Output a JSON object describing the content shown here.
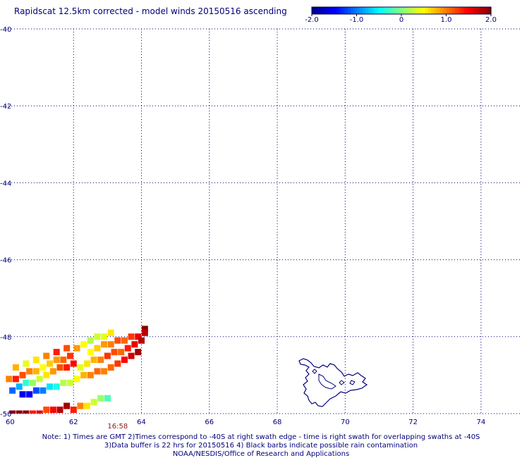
{
  "title": "Rapidscat 12.5km corrected - model winds 20150516 ascending",
  "colorbar": {
    "labels": [
      "-2.0",
      "-1.0",
      "0",
      "1.0",
      "2.0"
    ],
    "values": [
      -2.0,
      -1.0,
      0,
      1.0,
      2.0
    ],
    "colors": [
      "#00008b",
      "#0000ff",
      "#0080ff",
      "#00ffff",
      "#80ff80",
      "#ffff00",
      "#ff8000",
      "#ff0000",
      "#8b0000"
    ]
  },
  "map": {
    "lon_range": [
      60,
      75
    ],
    "lat_range": [
      -50,
      -40
    ],
    "x_ticks": [
      "60",
      "62",
      "64",
      "66",
      "68",
      "70",
      "72",
      "74"
    ],
    "y_ticks": [
      "-40",
      "-42",
      "-44",
      "-46",
      "-48",
      "-50"
    ],
    "grid_lines": "dotted",
    "coast_color": "#000080",
    "swath_time": "16:58",
    "swath_cells": [
      {
        "lon": 64.1,
        "lat": -47.8,
        "v": 2.0
      },
      {
        "lon": 64.1,
        "lat": -47.9,
        "v": 1.8
      },
      {
        "lon": 63.9,
        "lat": -48.0,
        "v": 1.6
      },
      {
        "lon": 63.7,
        "lat": -48.0,
        "v": 1.3
      },
      {
        "lon": 63.5,
        "lat": -48.1,
        "v": 1.1
      },
      {
        "lon": 63.3,
        "lat": -48.1,
        "v": 1.2
      },
      {
        "lon": 63.1,
        "lat": -48.2,
        "v": 1.0
      },
      {
        "lon": 62.9,
        "lat": -48.2,
        "v": 0.9
      },
      {
        "lon": 62.7,
        "lat": -48.3,
        "v": 0.7
      },
      {
        "lon": 62.5,
        "lat": -48.4,
        "v": 0.5
      },
      {
        "lon": 64.0,
        "lat": -48.1,
        "v": 1.8
      },
      {
        "lon": 63.8,
        "lat": -48.2,
        "v": 1.6
      },
      {
        "lon": 63.6,
        "lat": -48.3,
        "v": 1.4
      },
      {
        "lon": 63.4,
        "lat": -48.4,
        "v": 1.1
      },
      {
        "lon": 63.2,
        "lat": -48.4,
        "v": 1.2
      },
      {
        "lon": 63.0,
        "lat": -48.5,
        "v": 1.3
      },
      {
        "lon": 62.8,
        "lat": -48.6,
        "v": 1.0
      },
      {
        "lon": 62.6,
        "lat": -48.6,
        "v": 0.8
      },
      {
        "lon": 62.4,
        "lat": -48.7,
        "v": 0.6
      },
      {
        "lon": 62.2,
        "lat": -48.8,
        "v": 0.4
      },
      {
        "lon": 63.9,
        "lat": -48.4,
        "v": 1.9
      },
      {
        "lon": 63.7,
        "lat": -48.5,
        "v": 1.7
      },
      {
        "lon": 63.5,
        "lat": -48.6,
        "v": 1.5
      },
      {
        "lon": 63.3,
        "lat": -48.7,
        "v": 1.3
      },
      {
        "lon": 63.1,
        "lat": -48.8,
        "v": 1.1
      },
      {
        "lon": 62.9,
        "lat": -48.9,
        "v": 1.0
      },
      {
        "lon": 62.7,
        "lat": -48.9,
        "v": 1.1
      },
      {
        "lon": 62.5,
        "lat": -49.0,
        "v": 1.0
      },
      {
        "lon": 62.3,
        "lat": -49.0,
        "v": 0.8
      },
      {
        "lon": 62.1,
        "lat": -49.1,
        "v": 0.5
      },
      {
        "lon": 61.9,
        "lat": -49.2,
        "v": 0.3
      },
      {
        "lon": 61.7,
        "lat": -49.2,
        "v": 0.2
      },
      {
        "lon": 61.5,
        "lat": -49.3,
        "v": -0.4
      },
      {
        "lon": 61.3,
        "lat": -49.3,
        "v": -0.6
      },
      {
        "lon": 61.1,
        "lat": -49.4,
        "v": -1.0
      },
      {
        "lon": 60.9,
        "lat": -49.4,
        "v": -1.2
      },
      {
        "lon": 60.7,
        "lat": -49.5,
        "v": -1.5
      },
      {
        "lon": 60.5,
        "lat": -49.5,
        "v": -1.6
      },
      {
        "lon": 62.0,
        "lat": -48.7,
        "v": 1.5
      },
      {
        "lon": 61.8,
        "lat": -48.8,
        "v": 1.4
      },
      {
        "lon": 61.6,
        "lat": -48.8,
        "v": 1.2
      },
      {
        "lon": 61.4,
        "lat": -48.9,
        "v": 0.9
      },
      {
        "lon": 61.2,
        "lat": -49.0,
        "v": 0.6
      },
      {
        "lon": 61.0,
        "lat": -49.1,
        "v": 0.3
      },
      {
        "lon": 60.8,
        "lat": -49.2,
        "v": 0.1
      },
      {
        "lon": 60.6,
        "lat": -49.2,
        "v": -0.3
      },
      {
        "lon": 60.4,
        "lat": -49.3,
        "v": -0.8
      },
      {
        "lon": 60.2,
        "lat": -49.4,
        "v": -1.1
      },
      {
        "lon": 61.9,
        "lat": -48.5,
        "v": 1.3
      },
      {
        "lon": 61.7,
        "lat": -48.6,
        "v": 1.1
      },
      {
        "lon": 61.5,
        "lat": -48.6,
        "v": 0.9
      },
      {
        "lon": 61.3,
        "lat": -48.7,
        "v": 0.7
      },
      {
        "lon": 61.1,
        "lat": -48.8,
        "v": 0.5
      },
      {
        "lon": 60.9,
        "lat": -48.9,
        "v": 0.8
      },
      {
        "lon": 60.7,
        "lat": -48.9,
        "v": 1.0
      },
      {
        "lon": 60.5,
        "lat": -49.0,
        "v": 1.2
      },
      {
        "lon": 60.3,
        "lat": -49.1,
        "v": 1.4
      },
      {
        "lon": 60.1,
        "lat": -49.1,
        "v": 1.0
      },
      {
        "lon": 63.1,
        "lat": -47.9,
        "v": 0.6
      },
      {
        "lon": 62.9,
        "lat": -48.0,
        "v": 0.4
      },
      {
        "lon": 62.7,
        "lat": -48.0,
        "v": 0.3
      },
      {
        "lon": 62.5,
        "lat": -48.1,
        "v": 0.2
      },
      {
        "lon": 62.3,
        "lat": -48.2,
        "v": 0.5
      },
      {
        "lon": 62.1,
        "lat": -48.3,
        "v": 0.9
      },
      {
        "lon": 61.8,
        "lat": -48.3,
        "v": 1.2
      },
      {
        "lon": 61.5,
        "lat": -48.4,
        "v": 1.4
      },
      {
        "lon": 61.2,
        "lat": -48.5,
        "v": 1.0
      },
      {
        "lon": 60.9,
        "lat": -48.6,
        "v": 0.6
      },
      {
        "lon": 60.6,
        "lat": -48.7,
        "v": 0.4
      },
      {
        "lon": 60.3,
        "lat": -48.8,
        "v": 0.8
      },
      {
        "lon": 63.0,
        "lat": -49.6,
        "v": -0.2
      },
      {
        "lon": 62.8,
        "lat": -49.6,
        "v": 0.1
      },
      {
        "lon": 62.6,
        "lat": -49.7,
        "v": 0.3
      },
      {
        "lon": 62.4,
        "lat": -49.8,
        "v": 0.6
      },
      {
        "lon": 62.2,
        "lat": -49.8,
        "v": 1.0
      },
      {
        "lon": 62.0,
        "lat": -49.9,
        "v": 1.4
      },
      {
        "lon": 61.8,
        "lat": -49.8,
        "v": 1.9
      },
      {
        "lon": 61.6,
        "lat": -49.9,
        "v": 1.8
      },
      {
        "lon": 61.4,
        "lat": -49.9,
        "v": 1.5
      },
      {
        "lon": 61.2,
        "lat": -49.9,
        "v": 1.2
      },
      {
        "lon": 61.0,
        "lat": -50.0,
        "v": 1.6
      },
      {
        "lon": 60.8,
        "lat": -50.0,
        "v": 1.4
      },
      {
        "lon": 60.6,
        "lat": -50.0,
        "v": 2.0
      },
      {
        "lon": 60.4,
        "lat": -50.0,
        "v": 2.0
      },
      {
        "lon": 60.2,
        "lat": -50.0,
        "v": 2.0
      }
    ]
  },
  "notes": [
    "Note: 1) Times are GMT 2)Times correspond to -40S at right swath edge - time is right swath for overlapping swaths at -40S",
    "3)Data buffer is 22 hrs for 20150516 4) Black barbs indicate possible rain contamination",
    "NOAA/NESDIS/Office of Research and Applications"
  ]
}
